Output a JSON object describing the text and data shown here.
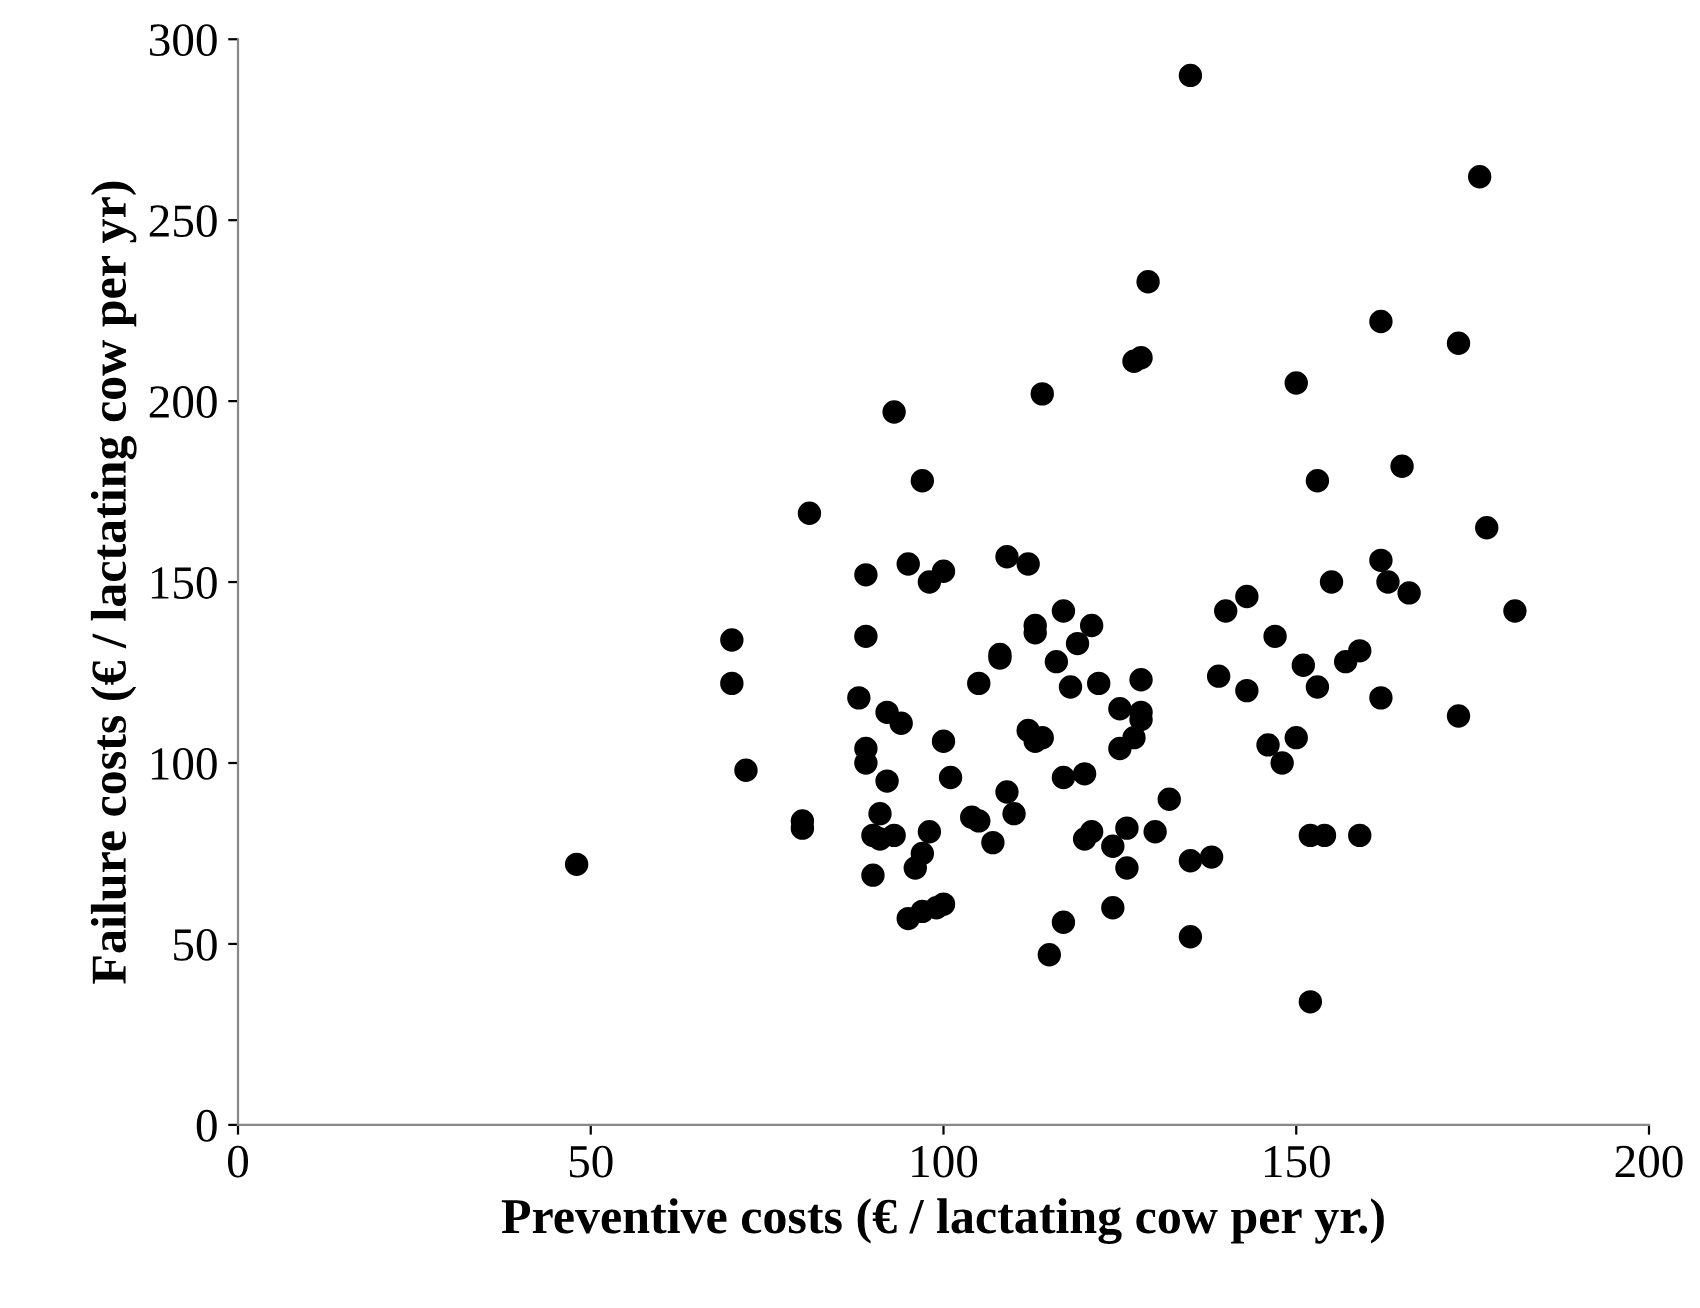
{
  "chart_data": {
    "type": "scatter",
    "xlabel": "Preventive costs (€ / lactating cow per yr.)",
    "ylabel": "Failure costs (€ / lactating cow per yr)",
    "xlim": [
      0,
      200
    ],
    "ylim": [
      0,
      300
    ],
    "xticks": [
      0,
      50,
      100,
      150,
      200
    ],
    "yticks": [
      0,
      50,
      100,
      150,
      200,
      250,
      300
    ],
    "grid": false,
    "marker": "circle",
    "series": [
      {
        "color": "#000000",
        "x": [
          48,
          70,
          70,
          72,
          80,
          80,
          81,
          88,
          89,
          89,
          89,
          89,
          90,
          90,
          91,
          91,
          92,
          92,
          93,
          93,
          94,
          95,
          95,
          96,
          97,
          97,
          97,
          98,
          98,
          99,
          100,
          100,
          100,
          101,
          104,
          105,
          105,
          107,
          108,
          108,
          109,
          109,
          110,
          112,
          112,
          113,
          113,
          113,
          114,
          114,
          115,
          116,
          117,
          117,
          117,
          118,
          119,
          120,
          120,
          121,
          121,
          122,
          124,
          124,
          125,
          125,
          126,
          126,
          127,
          127,
          128,
          128,
          128,
          128,
          129,
          130,
          132,
          135,
          135,
          135,
          138,
          139,
          140,
          143,
          143,
          146,
          147,
          148,
          150,
          150,
          151,
          152,
          152,
          153,
          153,
          154,
          155,
          157,
          159,
          159,
          162,
          162,
          162,
          163,
          165,
          166,
          173,
          173,
          176,
          177,
          181
        ],
        "values": [
          72,
          122,
          134,
          98,
          82,
          84,
          169,
          118,
          100,
          104,
          152,
          135,
          80,
          69,
          86,
          79,
          95,
          114,
          80,
          197,
          111,
          155,
          57,
          71,
          75,
          59,
          178,
          81,
          150,
          60,
          61,
          106,
          153,
          96,
          85,
          84,
          122,
          78,
          130,
          129,
          92,
          157,
          86,
          155,
          109,
          106,
          138,
          136,
          107,
          202,
          47,
          128,
          56,
          96,
          142,
          121,
          133,
          97,
          79,
          138,
          81,
          122,
          60,
          77,
          104,
          115,
          71,
          82,
          107,
          211,
          212,
          123,
          114,
          112,
          233,
          81,
          90,
          290,
          52,
          73,
          74,
          124,
          142,
          146,
          120,
          105,
          135,
          100,
          205,
          107,
          127,
          34,
          80,
          178,
          121,
          80,
          150,
          128,
          131,
          80,
          222,
          118,
          156,
          150,
          182,
          147,
          216,
          113,
          262,
          165,
          142
        ]
      }
    ]
  }
}
